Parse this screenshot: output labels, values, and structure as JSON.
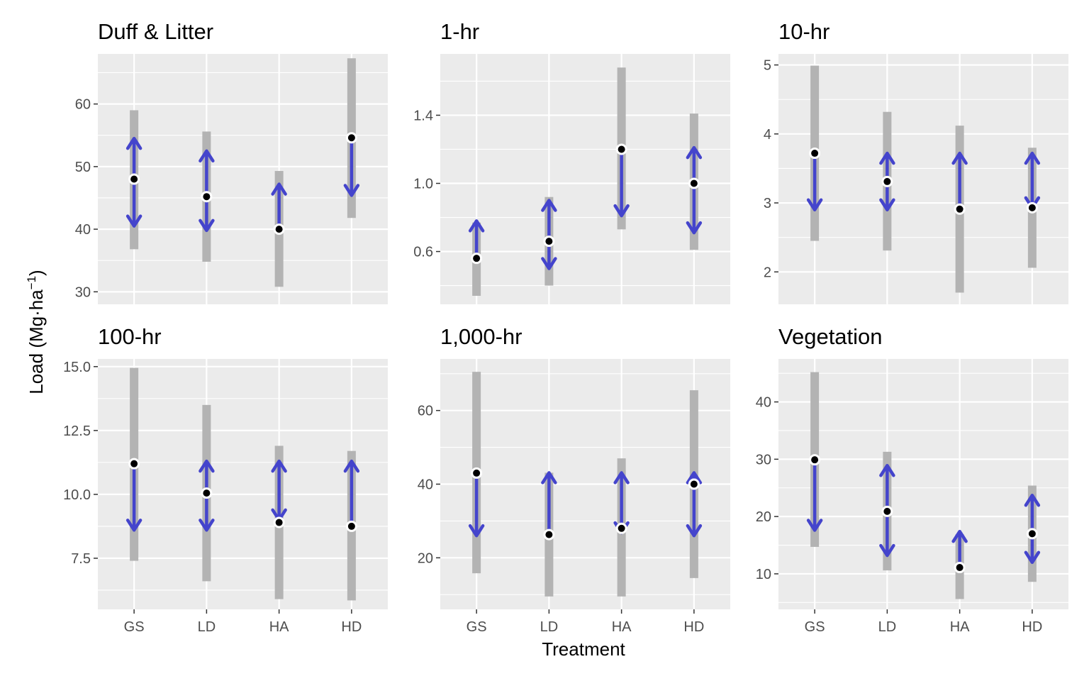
{
  "chart_data": {
    "type": "scatter",
    "xlabel": "Treatment",
    "ylabel": "Load (Mg·ha",
    "ylabel_superscript": "−1",
    "ylabel_close": ")",
    "categories": [
      "GS",
      "LD",
      "HA",
      "HD"
    ],
    "colors": {
      "panel_bg": "#ebebeb",
      "grid": "#ffffff",
      "range_bar": "#b3b3b3",
      "arrow": "#4444cc",
      "point": "#000000"
    },
    "panels": [
      {
        "title": "Duff & Litter",
        "ylim": [
          28,
          68
        ],
        "yticks": [
          30,
          40,
          50,
          60
        ],
        "ytick_labels": [
          "30",
          "40",
          "50",
          "60"
        ],
        "points": [
          {
            "category": "GS",
            "value": 48.0,
            "range": [
              36.8,
              59.0
            ],
            "arrow_up": 54.5,
            "arrow_down": 40.5
          },
          {
            "category": "LD",
            "value": 45.2,
            "range": [
              34.8,
              55.6
            ],
            "arrow_up": 52.5,
            "arrow_down": 39.8
          },
          {
            "category": "HA",
            "value": 40.0,
            "range": [
              30.8,
              49.3
            ],
            "arrow_up": 47.2,
            "arrow_down": null
          },
          {
            "category": "HD",
            "value": 54.6,
            "range": [
              41.8,
              67.3
            ],
            "arrow_up": null,
            "arrow_down": 45.4
          }
        ]
      },
      {
        "title": "1-hr",
        "ylim": [
          0.29,
          1.76
        ],
        "yticks": [
          0.6,
          1.0,
          1.4
        ],
        "ytick_labels": [
          "0.6",
          "1.0",
          "1.4"
        ],
        "points": [
          {
            "category": "GS",
            "value": 0.56,
            "range": [
              0.34,
              0.77
            ],
            "arrow_up": 0.78,
            "arrow_down": null
          },
          {
            "category": "LD",
            "value": 0.66,
            "range": [
              0.4,
              0.92
            ],
            "arrow_up": 0.9,
            "arrow_down": 0.5
          },
          {
            "category": "HA",
            "value": 1.2,
            "range": [
              0.73,
              1.68
            ],
            "arrow_up": null,
            "arrow_down": 0.81
          },
          {
            "category": "HD",
            "value": 1.0,
            "range": [
              0.61,
              1.41
            ],
            "arrow_up": 1.21,
            "arrow_down": 0.71
          }
        ]
      },
      {
        "title": "10-hr",
        "ylim": [
          1.53,
          5.16
        ],
        "yticks": [
          2,
          3,
          4,
          5
        ],
        "ytick_labels": [
          "2",
          "3",
          "4",
          "5"
        ],
        "points": [
          {
            "category": "GS",
            "value": 3.72,
            "range": [
              2.45,
              4.99
            ],
            "arrow_up": null,
            "arrow_down": 2.9
          },
          {
            "category": "LD",
            "value": 3.31,
            "range": [
              2.31,
              4.32
            ],
            "arrow_up": 3.72,
            "arrow_down": 2.9
          },
          {
            "category": "HA",
            "value": 2.91,
            "range": [
              1.7,
              4.12
            ],
            "arrow_up": 3.72,
            "arrow_down": null
          },
          {
            "category": "HD",
            "value": 2.93,
            "range": [
              2.06,
              3.8
            ],
            "arrow_up": 3.72,
            "arrow_down": 2.93
          }
        ]
      },
      {
        "title": "100-hr",
        "ylim": [
          5.5,
          15.3
        ],
        "yticks": [
          7.5,
          10.0,
          12.5,
          15.0
        ],
        "ytick_labels": [
          "7.5",
          "10.0",
          "12.5",
          "15.0"
        ],
        "points": [
          {
            "category": "GS",
            "value": 11.2,
            "range": [
              7.4,
              14.95
            ],
            "arrow_up": null,
            "arrow_down": 8.6
          },
          {
            "category": "LD",
            "value": 10.05,
            "range": [
              6.6,
              13.5
            ],
            "arrow_up": 11.3,
            "arrow_down": 8.6
          },
          {
            "category": "HA",
            "value": 8.9,
            "range": [
              5.9,
              11.9
            ],
            "arrow_up": 11.3,
            "arrow_down": 9.0
          },
          {
            "category": "HD",
            "value": 8.75,
            "range": [
              5.85,
              11.7
            ],
            "arrow_up": 11.3,
            "arrow_down": null
          }
        ]
      },
      {
        "title": "1,000-hr",
        "ylim": [
          6,
          74
        ],
        "yticks": [
          20,
          40,
          60
        ],
        "ytick_labels": [
          "20",
          "40",
          "60"
        ],
        "points": [
          {
            "category": "GS",
            "value": 43.0,
            "range": [
              15.8,
              70.5
            ],
            "arrow_up": null,
            "arrow_down": 26.0
          },
          {
            "category": "LD",
            "value": 26.3,
            "range": [
              9.5,
              43.1
            ],
            "arrow_up": 43.1,
            "arrow_down": null
          },
          {
            "category": "HA",
            "value": 28.0,
            "range": [
              9.5,
              47.0
            ],
            "arrow_up": 43.1,
            "arrow_down": 26.8
          },
          {
            "category": "HD",
            "value": 40.0,
            "range": [
              14.5,
              65.5
            ],
            "arrow_up": 43.1,
            "arrow_down": 26.0
          }
        ]
      },
      {
        "title": "Vegetation",
        "ylim": [
          3.8,
          47.5
        ],
        "yticks": [
          10,
          20,
          30,
          40
        ],
        "ytick_labels": [
          "10",
          "20",
          "30",
          "40"
        ],
        "points": [
          {
            "category": "GS",
            "value": 29.9,
            "range": [
              14.7,
              45.2
            ],
            "arrow_up": null,
            "arrow_down": 17.6
          },
          {
            "category": "LD",
            "value": 20.9,
            "range": [
              10.6,
              31.3
            ],
            "arrow_up": 28.9,
            "arrow_down": 13.2
          },
          {
            "category": "HA",
            "value": 11.1,
            "range": [
              5.6,
              16.9
            ],
            "arrow_up": 17.4,
            "arrow_down": null
          },
          {
            "category": "HD",
            "value": 17.0,
            "range": [
              8.6,
              25.4
            ],
            "arrow_up": 23.7,
            "arrow_down": 12.0
          }
        ]
      }
    ]
  }
}
